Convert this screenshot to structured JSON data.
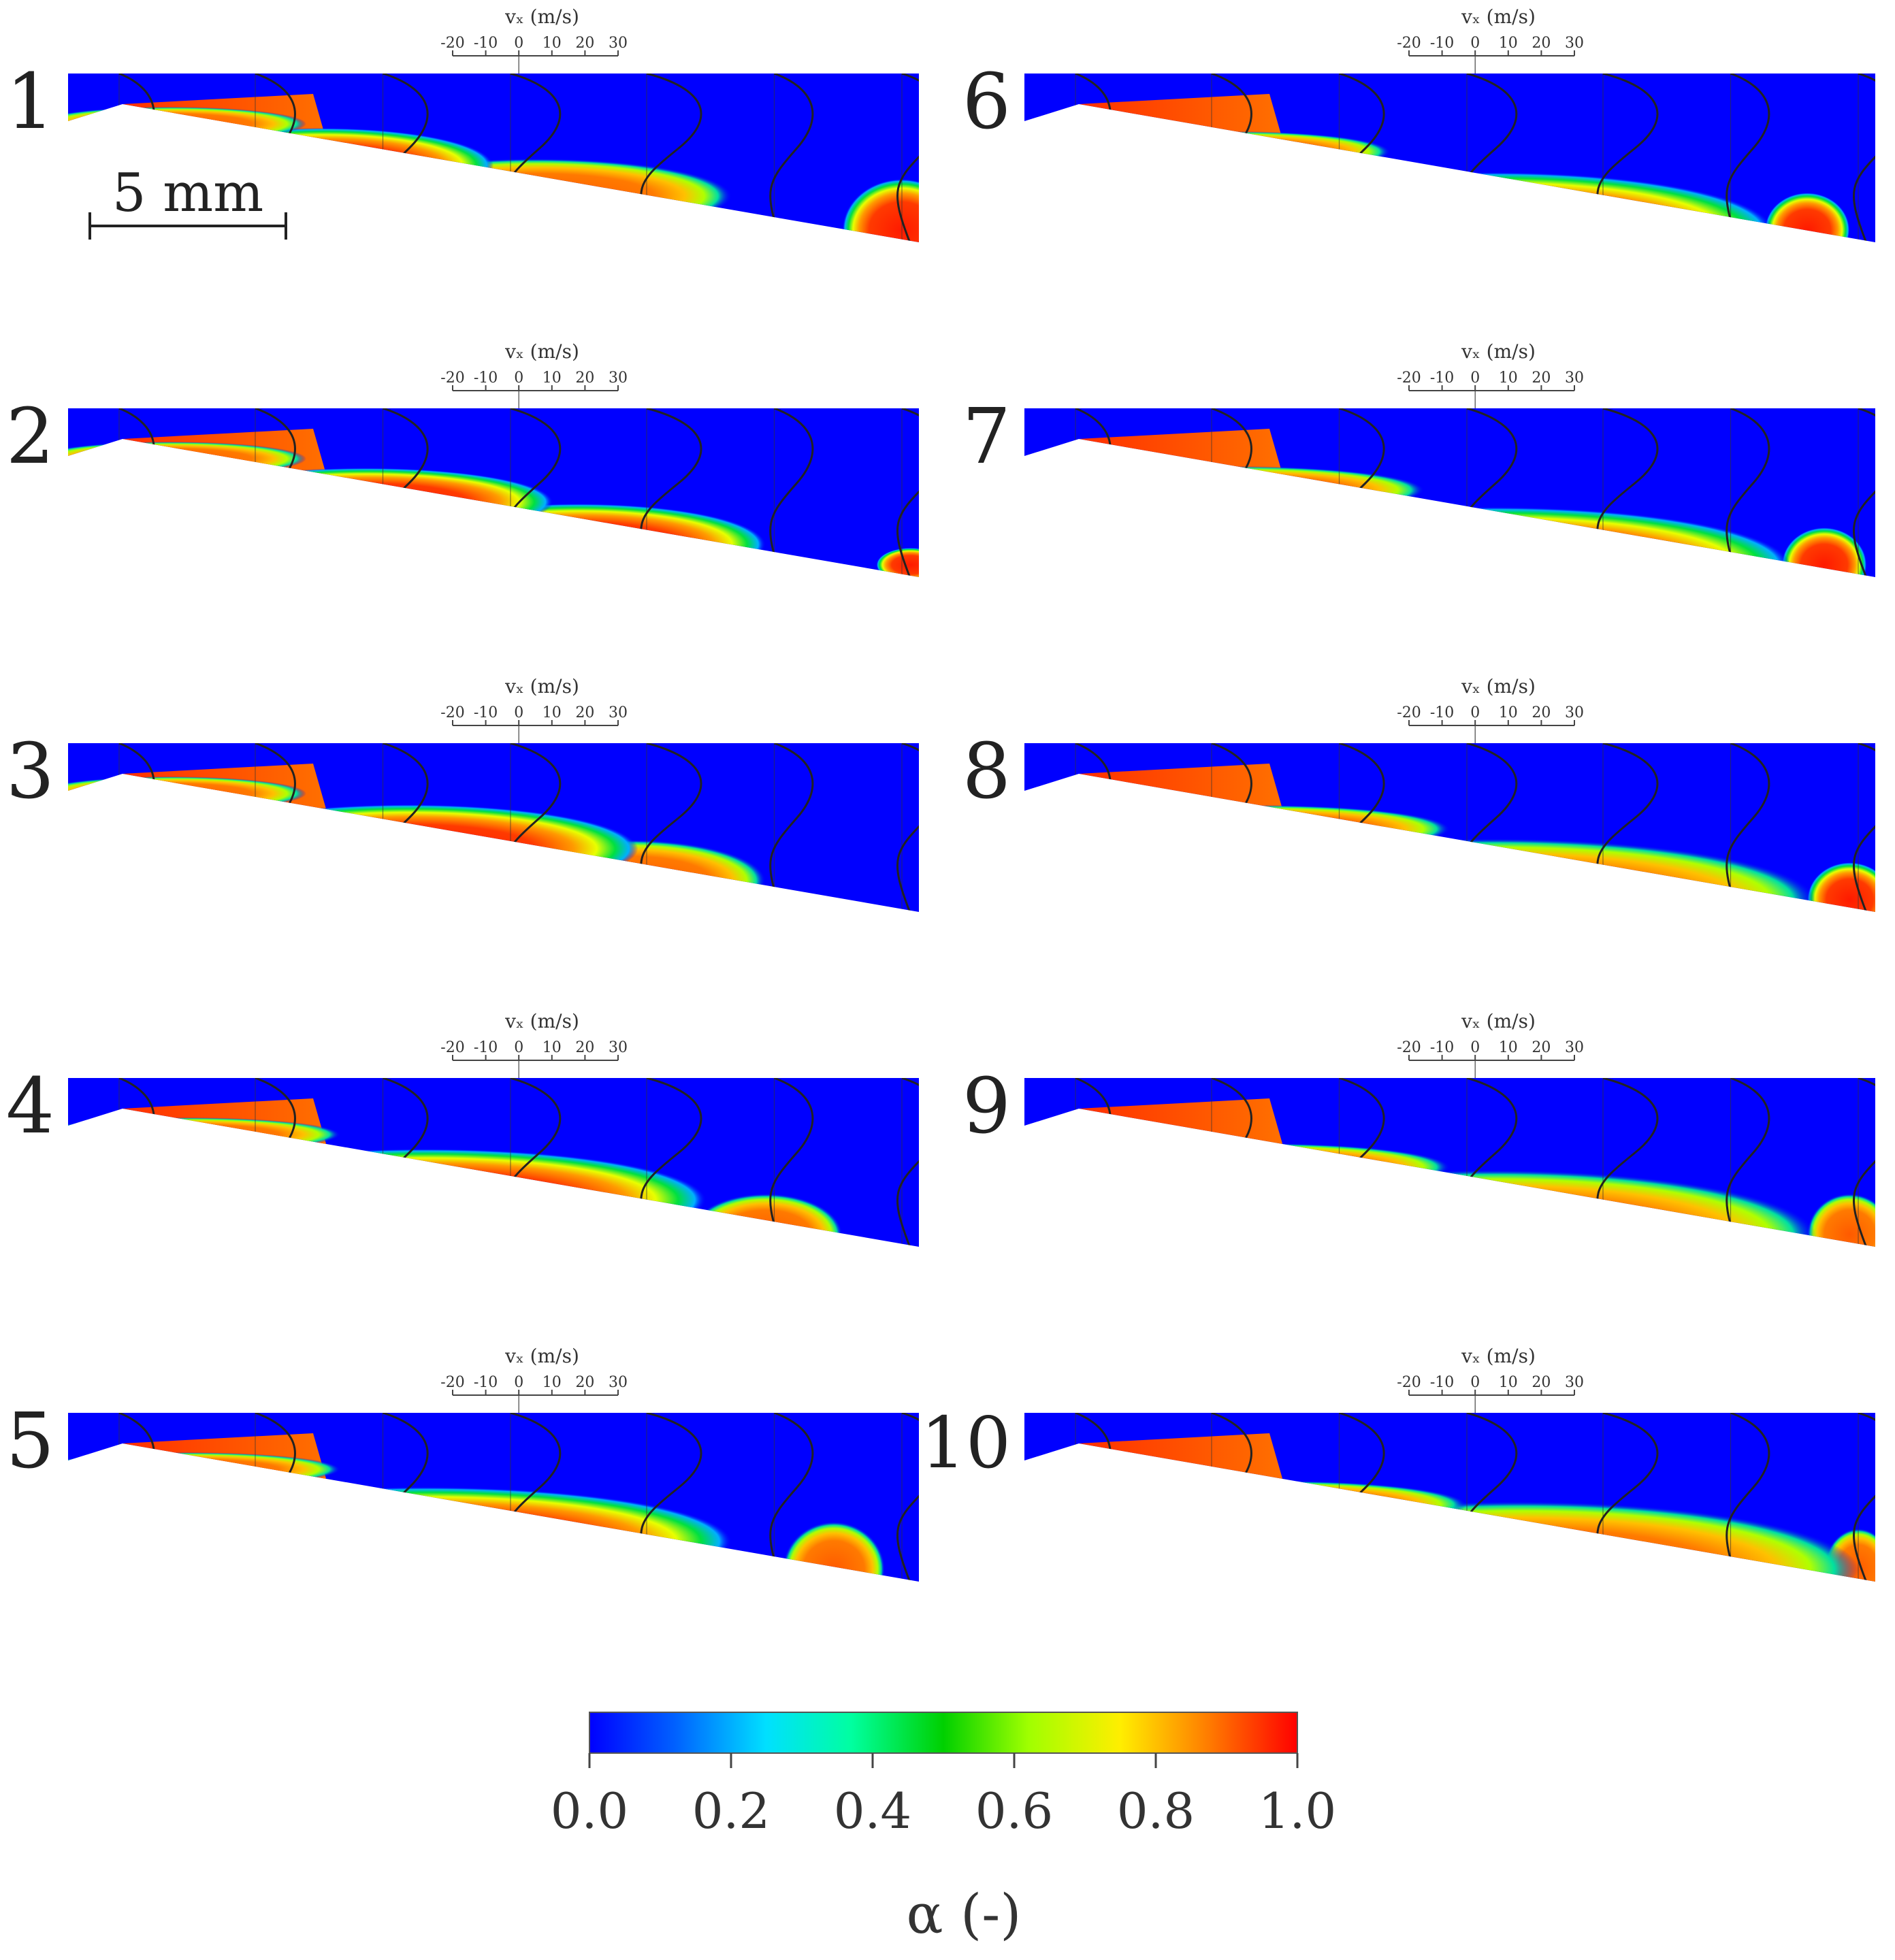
{
  "figure": {
    "scale_bar_label": "5 mm",
    "velocity_axis_title": "vₓ (m/s)",
    "velocity_ticks": [
      "-20",
      "-10",
      "0",
      "10",
      "20",
      "30"
    ],
    "panel_labels": [
      "1",
      "2",
      "3",
      "4",
      "5",
      "6",
      "7",
      "8",
      "9",
      "10"
    ]
  },
  "colorbar": {
    "label": "α (-)",
    "ticks": [
      "0.0",
      "0.2",
      "0.4",
      "0.6",
      "0.8",
      "1.0"
    ],
    "min": 0.0,
    "max": 1.0,
    "colormap": "jet",
    "colors": [
      "#0000ff",
      "#0080ff",
      "#00ffff",
      "#00ff80",
      "#00dd00",
      "#80ff00",
      "#ffff00",
      "#ff8000",
      "#ff0000"
    ]
  },
  "background_color": "#0000ff",
  "vapor_color": "#ff2000"
}
